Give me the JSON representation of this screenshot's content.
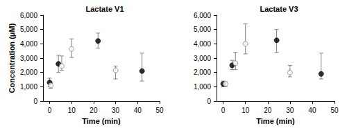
{
  "chart_data": [
    {
      "type": "scatter",
      "title": "Lactate V1",
      "x_label": "Time (min)",
      "y_label": "Concentration (μM)",
      "xlim": [
        -3,
        50
      ],
      "xticks": [
        0,
        10,
        20,
        30,
        40,
        50
      ],
      "ylim": [
        0,
        6000
      ],
      "yticks": [
        0,
        {
          "value": 1000,
          "label": "1,000"
        },
        {
          "value": 2000,
          "label": "2,000"
        },
        {
          "value": 3000,
          "label": "3,000"
        },
        {
          "value": 4000,
          "label": "4,000"
        },
        {
          "value": 5000,
          "label": "5,000"
        },
        {
          "value": 6000,
          "label": "6,000"
        }
      ],
      "grid": false,
      "series": [
        {
          "color": "#000000",
          "marker": "filled",
          "x": [
            0,
            4,
            22,
            42
          ],
          "values": [
            1300,
            2600,
            4200,
            2100
          ],
          "lower": [
            1000,
            2000,
            3700,
            1400
          ],
          "upper": [
            1600,
            3200,
            4750,
            3350
          ]
        },
        {
          "color": "#808080",
          "marker": "open",
          "x": [
            0.5,
            5.5,
            10,
            30
          ],
          "values": [
            1100,
            2450,
            3650,
            2150
          ],
          "lower": [
            900,
            2150,
            3050,
            1550
          ],
          "upper": [
            1250,
            3150,
            4350,
            2450
          ]
        }
      ]
    },
    {
      "type": "scatter",
      "title": "Lactate V3",
      "x_label": "Time (min)",
      "xlim": [
        -3,
        50
      ],
      "xticks": [
        0,
        10,
        20,
        30,
        40,
        50
      ],
      "ylim": [
        0,
        6000
      ],
      "yticks": [
        0,
        {
          "value": 1000,
          "label": "1,000"
        },
        {
          "value": 2000,
          "label": "2,000"
        },
        {
          "value": 3000,
          "label": "3,000"
        },
        {
          "value": 4000,
          "label": "4,000"
        },
        {
          "value": 5000,
          "label": "5,000"
        },
        {
          "value": 6000,
          "label": "6,000"
        }
      ],
      "grid": false,
      "series": [
        {
          "color": "#000000",
          "marker": "filled",
          "x": [
            0,
            4,
            24,
            44
          ],
          "values": [
            1200,
            2500,
            4250,
            1900
          ],
          "lower": [
            1000,
            2200,
            3400,
            1550
          ],
          "upper": [
            1400,
            2850,
            5000,
            3350
          ]
        },
        {
          "color": "#808080",
          "marker": "open",
          "x": [
            1,
            5.5,
            10,
            30
          ],
          "values": [
            1200,
            2650,
            4000,
            2000
          ],
          "lower": [
            1000,
            2200,
            3300,
            1700
          ],
          "upper": [
            1350,
            3400,
            5400,
            2500
          ]
        }
      ]
    }
  ]
}
